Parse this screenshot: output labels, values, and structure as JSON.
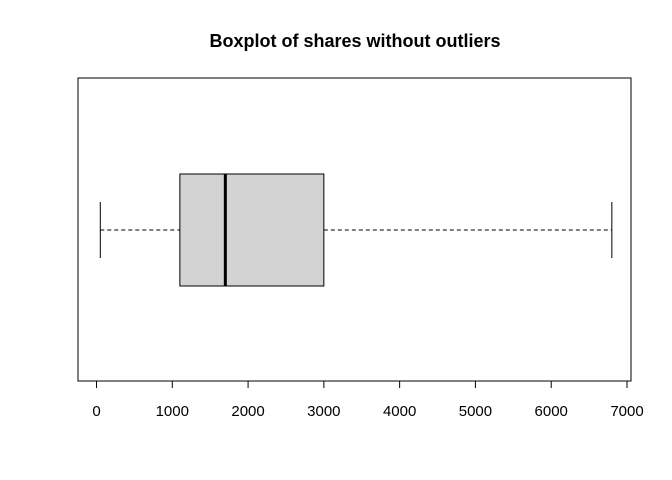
{
  "chart_data": {
    "type": "boxplot",
    "orientation": "horizontal",
    "title": "Boxplot of shares without outliers",
    "xlabel": "",
    "ylabel": "",
    "xlim": [
      0,
      7000
    ],
    "x_ticks": [
      0,
      1000,
      2000,
      3000,
      4000,
      5000,
      6000,
      7000
    ],
    "x_tick_labels": [
      "0",
      "1000",
      "2000",
      "3000",
      "4000",
      "5000",
      "6000",
      "7000"
    ],
    "series": [
      {
        "whisker_low": 50,
        "q1": 1100,
        "median": 1700,
        "q3": 3000,
        "whisker_high": 6800
      }
    ],
    "colors": {
      "box_fill": "#d3d3d3",
      "stroke": "#000000"
    },
    "grid": false,
    "legend": "none"
  }
}
